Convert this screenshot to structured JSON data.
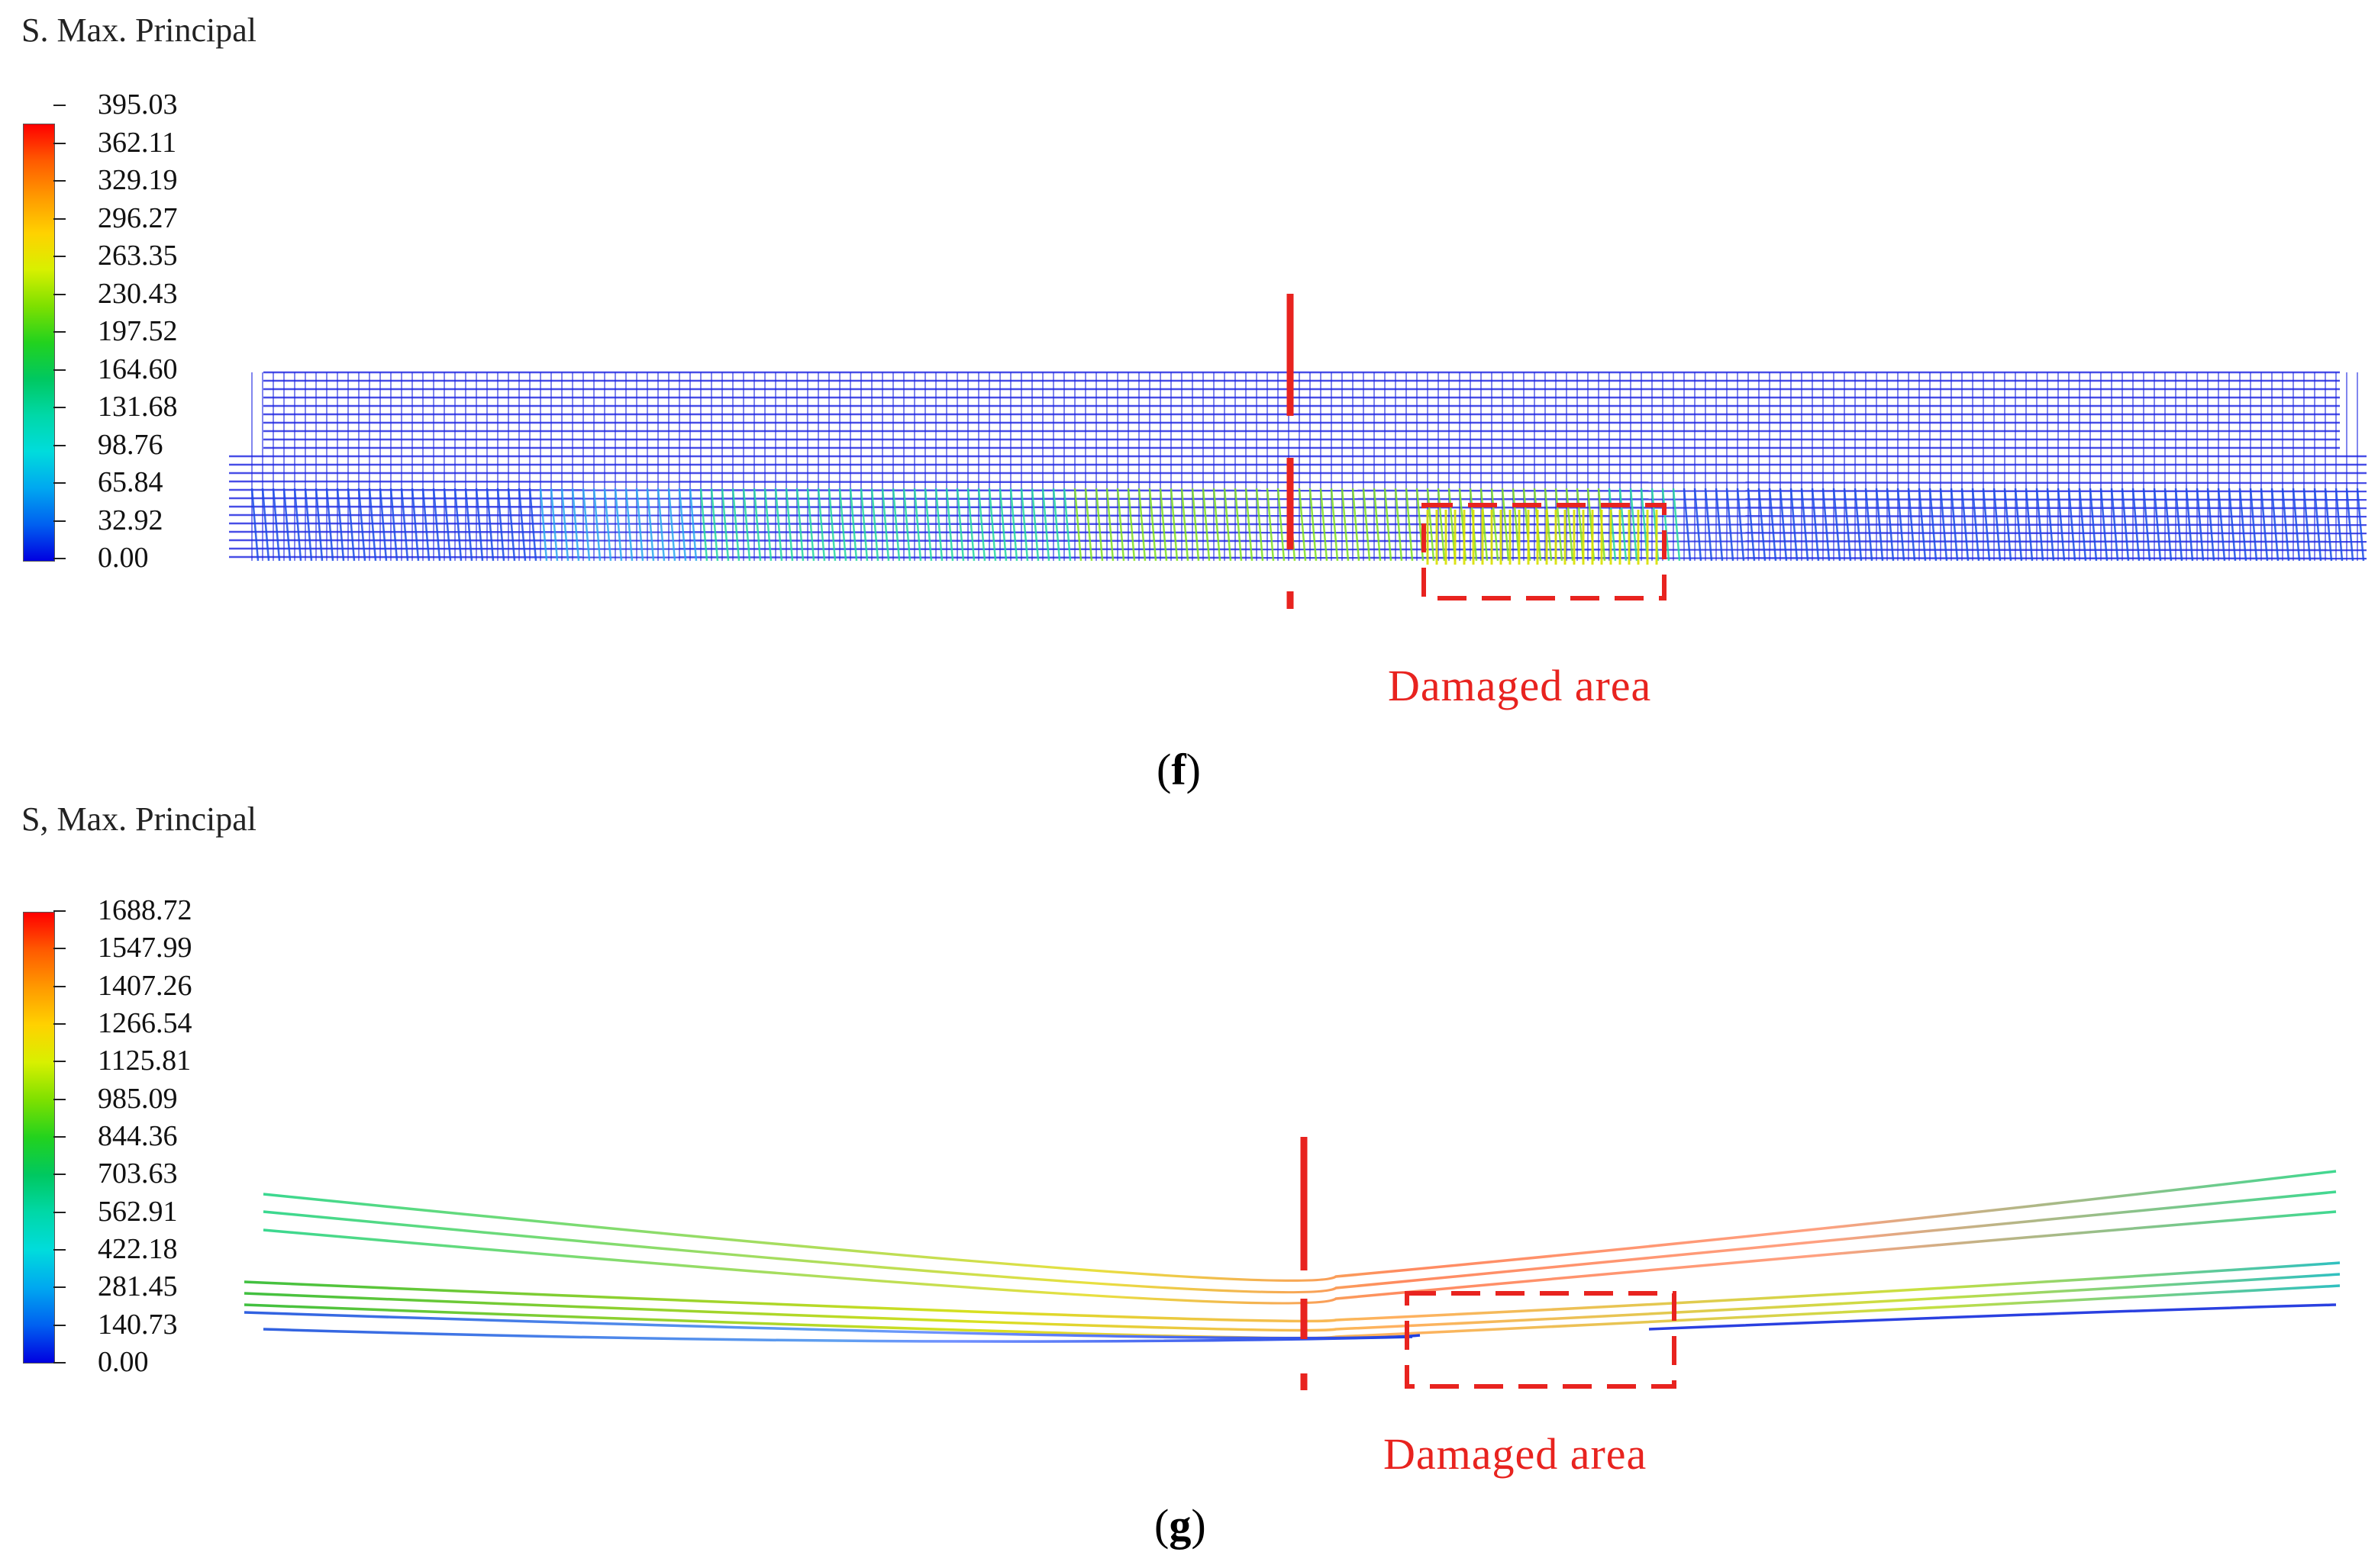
{
  "panels": [
    {
      "variable_title": "S. Max. Principal",
      "legend_values": [
        "395.03",
        "362.11",
        "329.19",
        "296.27",
        "263.35",
        "230.43",
        "197.52",
        "164.60",
        "131.68",
        "98.76",
        "65.84",
        "32.92",
        "0.00"
      ],
      "annotation": "Damaged area",
      "caption_letter": "f"
    },
    {
      "variable_title": "S, Max. Principal",
      "legend_values": [
        "1688.72",
        "1547.99",
        "1407.26",
        "1266.54",
        "1125.81",
        "985.09",
        "844.36",
        "703.63",
        "562.91",
        "422.18",
        "281.45",
        "140.73",
        "0.00"
      ],
      "annotation": "Damaged area",
      "caption_letter": "g"
    }
  ],
  "colors": {
    "legend_scale": [
      "#ff0000",
      "#ff5a00",
      "#ff9a00",
      "#ffd200",
      "#d8f000",
      "#7de000",
      "#22d21e",
      "#00c860",
      "#00d8a8",
      "#00dcdc",
      "#00a8f0",
      "#0060f0",
      "#0000e0"
    ],
    "mesh_primary": "#1a22e0",
    "annotation_red": "#e8231f"
  }
}
